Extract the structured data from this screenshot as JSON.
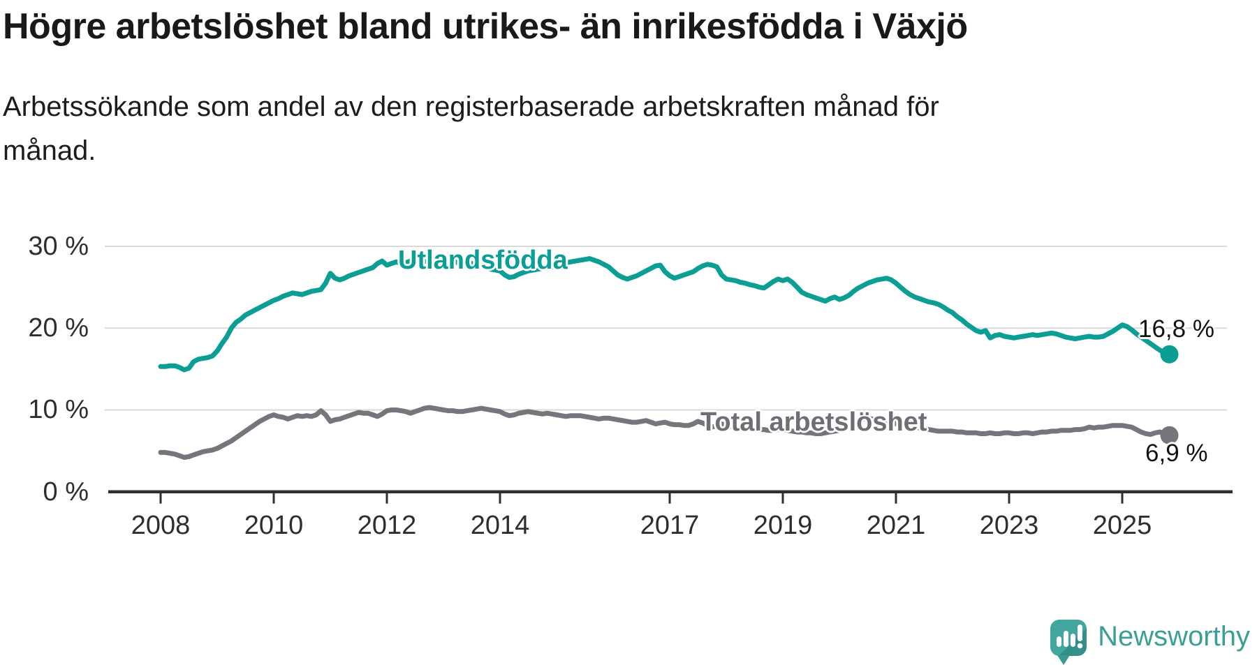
{
  "header": {
    "title": "Högre arbetslöshet bland utrikes- än inrikesfödda i Växjö",
    "subtitle": "Arbetssökande som andel av den registerbaserade arbetskraften månad för månad."
  },
  "chart_data": {
    "type": "line",
    "title": "Högre arbetslöshet bland utrikes- än inrikesfödda i Växjö",
    "subtitle": "Arbetssökande som andel av den registerbaserade arbetskraften månad för månad.",
    "unit": "%",
    "ylim": [
      0,
      30
    ],
    "grid": true,
    "x_start_year": 2008,
    "x_frequency": "monthly",
    "y_axis": {
      "ticks": [
        {
          "value": 30,
          "label": "30 %"
        },
        {
          "value": 20,
          "label": "20 %"
        },
        {
          "value": 10,
          "label": "10 %"
        },
        {
          "value": 0,
          "label": "0 %"
        }
      ]
    },
    "x_axis": {
      "tick_years": [
        2008,
        2010,
        2012,
        2014,
        2017,
        2019,
        2021,
        2023,
        2025
      ],
      "labels": [
        "2008",
        "2010",
        "2012",
        "2014",
        "2017",
        "2019",
        "2021",
        "2023",
        "2025"
      ]
    },
    "series": [
      {
        "name": "Utlandsfödda",
        "color": "#0a9e94",
        "end_label": "16,8 %",
        "end_value": 16.8,
        "values": [
          15.3,
          15.3,
          15.4,
          15.4,
          15.2,
          14.9,
          15.1,
          15.9,
          16.2,
          16.3,
          16.4,
          16.6,
          17.2,
          18.1,
          18.9,
          20.0,
          20.7,
          21.1,
          21.6,
          21.9,
          22.2,
          22.5,
          22.8,
          23.1,
          23.4,
          23.6,
          23.9,
          24.1,
          24.3,
          24.2,
          24.1,
          24.3,
          24.5,
          24.6,
          24.7,
          25.5,
          26.7,
          26.1,
          25.9,
          26.1,
          26.4,
          26.6,
          26.8,
          27.0,
          27.2,
          27.4,
          27.9,
          28.2,
          27.7,
          27.9,
          28.1,
          27.9,
          28.0,
          28.2,
          28.1,
          28.3,
          28.2,
          28.1,
          28.0,
          28.1,
          28.0,
          28.1,
          28.2,
          28.0,
          27.9,
          27.8,
          27.9,
          27.7,
          27.6,
          27.4,
          27.2,
          27.1,
          27.0,
          26.5,
          26.2,
          26.3,
          26.6,
          26.8,
          27.0,
          27.1,
          27.2,
          27.3,
          27.4,
          27.5,
          27.6,
          27.8,
          28.0,
          28.1,
          28.2,
          28.3,
          28.4,
          28.5,
          28.3,
          28.1,
          27.8,
          27.5,
          27.0,
          26.5,
          26.2,
          26.0,
          26.2,
          26.4,
          26.7,
          27.0,
          27.3,
          27.6,
          27.7,
          26.9,
          26.4,
          26.1,
          26.3,
          26.5,
          26.7,
          26.9,
          27.3,
          27.6,
          27.8,
          27.7,
          27.5,
          26.5,
          26.0,
          25.9,
          25.8,
          25.6,
          25.5,
          25.3,
          25.2,
          25.0,
          24.9,
          25.3,
          25.7,
          26.0,
          25.8,
          26.0,
          25.6,
          25.0,
          24.4,
          24.1,
          23.9,
          23.7,
          23.5,
          23.3,
          23.6,
          23.8,
          23.5,
          23.7,
          24.0,
          24.5,
          24.9,
          25.2,
          25.5,
          25.7,
          25.9,
          26.0,
          26.1,
          25.9,
          25.5,
          25.0,
          24.5,
          24.1,
          23.8,
          23.6,
          23.4,
          23.2,
          23.1,
          22.9,
          22.6,
          22.2,
          21.9,
          21.4,
          21.0,
          20.5,
          20.1,
          19.7,
          19.5,
          19.7,
          18.8,
          19.1,
          19.2,
          19.0,
          18.9,
          18.8,
          18.9,
          19.0,
          19.1,
          19.2,
          19.1,
          19.2,
          19.3,
          19.4,
          19.3,
          19.1,
          18.9,
          18.8,
          18.7,
          18.8,
          18.9,
          19.0,
          18.9,
          18.9,
          19.0,
          19.3,
          19.6,
          20.0,
          20.4,
          20.2,
          19.8,
          19.3,
          18.9,
          18.5,
          18.1,
          17.7,
          17.3,
          17.0,
          16.8
        ]
      },
      {
        "name": "Total arbetslöshet",
        "color": "#76757b",
        "end_label": "6,9 %",
        "end_value": 6.9,
        "values": [
          4.8,
          4.8,
          4.7,
          4.6,
          4.4,
          4.2,
          4.3,
          4.5,
          4.7,
          4.9,
          5.0,
          5.1,
          5.3,
          5.6,
          5.9,
          6.2,
          6.6,
          7.0,
          7.4,
          7.8,
          8.2,
          8.6,
          8.9,
          9.2,
          9.4,
          9.2,
          9.1,
          8.9,
          9.1,
          9.3,
          9.2,
          9.3,
          9.2,
          9.4,
          9.9,
          9.4,
          8.6,
          8.8,
          8.9,
          9.1,
          9.3,
          9.5,
          9.7,
          9.6,
          9.6,
          9.4,
          9.2,
          9.5,
          9.9,
          10.0,
          10.0,
          9.9,
          9.8,
          9.6,
          9.8,
          10.0,
          10.2,
          10.3,
          10.2,
          10.1,
          10.0,
          9.9,
          9.9,
          9.8,
          9.8,
          9.9,
          10.0,
          10.1,
          10.2,
          10.1,
          10.0,
          9.9,
          9.8,
          9.5,
          9.3,
          9.4,
          9.6,
          9.7,
          9.8,
          9.7,
          9.6,
          9.5,
          9.6,
          9.5,
          9.4,
          9.3,
          9.2,
          9.3,
          9.3,
          9.3,
          9.2,
          9.1,
          9.0,
          8.9,
          9.0,
          9.0,
          8.9,
          8.8,
          8.7,
          8.6,
          8.5,
          8.5,
          8.6,
          8.7,
          8.5,
          8.3,
          8.4,
          8.5,
          8.3,
          8.2,
          8.2,
          8.1,
          8.1,
          8.3,
          8.6,
          8.4,
          8.1,
          7.9,
          8.1,
          8.3,
          8.1,
          8.0,
          7.9,
          7.8,
          7.8,
          7.7,
          7.7,
          7.6,
          7.6,
          7.5,
          7.5,
          7.6,
          7.6,
          7.5,
          7.4,
          7.3,
          7.3,
          7.2,
          7.2,
          7.1,
          7.1,
          7.2,
          7.3,
          7.4,
          7.5,
          7.6,
          7.9,
          8.4,
          8.7,
          8.9,
          9.0,
          8.9,
          8.8,
          8.7,
          8.6,
          8.5,
          8.3,
          8.2,
          8.1,
          8.0,
          7.9,
          7.8,
          7.7,
          7.6,
          7.5,
          7.4,
          7.4,
          7.4,
          7.4,
          7.3,
          7.3,
          7.2,
          7.2,
          7.2,
          7.1,
          7.1,
          7.2,
          7.1,
          7.1,
          7.2,
          7.2,
          7.1,
          7.1,
          7.2,
          7.2,
          7.1,
          7.2,
          7.3,
          7.3,
          7.4,
          7.4,
          7.5,
          7.5,
          7.5,
          7.6,
          7.6,
          7.7,
          7.9,
          7.8,
          7.9,
          7.9,
          8.0,
          8.1,
          8.1,
          8.1,
          8.0,
          7.9,
          7.6,
          7.3,
          7.1,
          7.0,
          7.2,
          7.3,
          7.1,
          6.9
        ]
      }
    ],
    "colors": {
      "utlandsfodda": "#0a9e94",
      "total": "#76757b",
      "grid": "#d9d9d9",
      "axis": "#2f2f2f"
    }
  },
  "branding": {
    "logo_text": "Newsworthy",
    "logo_color": "#3b9f96"
  }
}
